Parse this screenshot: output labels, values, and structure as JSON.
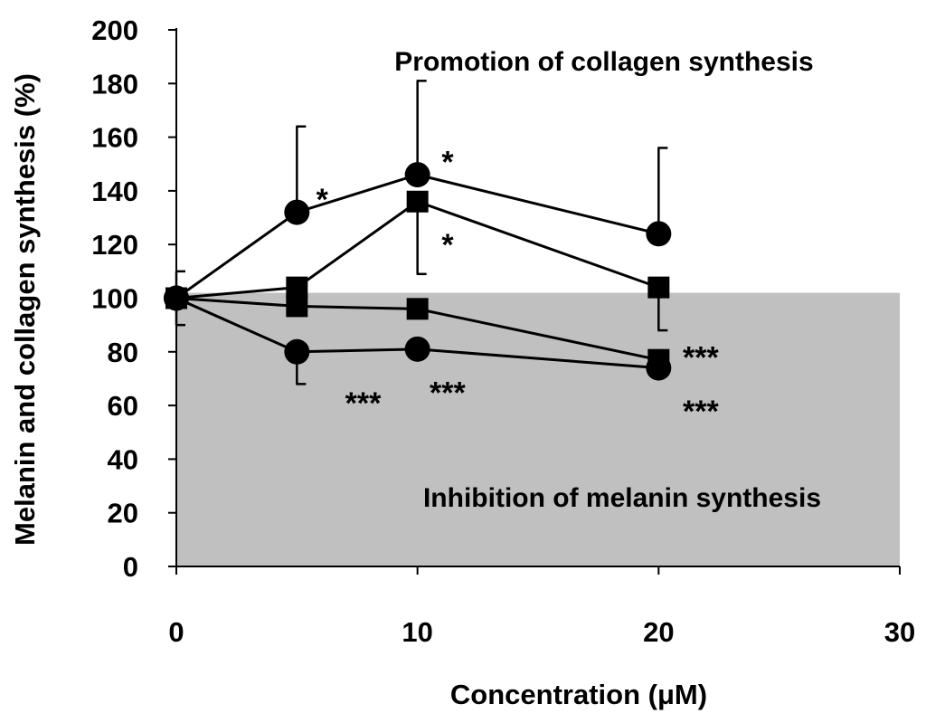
{
  "chart_data": {
    "type": "line",
    "xlabel": "Concentration (μM)",
    "ylabel": "Melanin and collagen synthesis (%)",
    "xlim": [
      0,
      30
    ],
    "ylim": [
      0,
      200
    ],
    "xticks": [
      "0",
      "10",
      "20",
      "30"
    ],
    "yticks": [
      "0",
      "20",
      "40",
      "60",
      "80",
      "100",
      "120",
      "140",
      "160",
      "180",
      "200"
    ],
    "grid": false,
    "shaded_region": {
      "x": [
        0,
        30
      ],
      "y": [
        0,
        102
      ],
      "color": "#c0c0c0"
    },
    "region_labels": {
      "upper": "Promotion of collagen   synthesis",
      "lower": "Inhibition of melanin synthesis"
    },
    "series": [
      {
        "marker": "circle",
        "x": [
          0,
          5,
          10,
          20
        ],
        "y": [
          100,
          132,
          146,
          124
        ],
        "error_up": [
          10,
          32,
          35,
          32
        ]
      },
      {
        "marker": "square",
        "x": [
          0,
          5,
          10,
          20
        ],
        "y": [
          100,
          104,
          136,
          104
        ],
        "error_down": [
          0,
          0,
          27,
          16
        ]
      },
      {
        "marker": "square",
        "x": [
          0,
          5,
          10,
          20
        ],
        "y": [
          100,
          97,
          96,
          77
        ]
      },
      {
        "marker": "circle",
        "x": [
          0,
          5,
          10,
          20
        ],
        "y": [
          100,
          80,
          81,
          74
        ],
        "error_down": [
          10,
          12,
          0,
          0
        ]
      }
    ],
    "annotations": [
      {
        "text": "*",
        "x": 5.8,
        "y": 137
      },
      {
        "text": "*",
        "x": 11.0,
        "y": 151
      },
      {
        "text": "*",
        "x": 11.0,
        "y": 120
      },
      {
        "text": "***",
        "x": 7.0,
        "y": 61
      },
      {
        "text": "***",
        "x": 10.5,
        "y": 65
      },
      {
        "text": "***",
        "x": 21.0,
        "y": 78
      },
      {
        "text": "***",
        "x": 21.0,
        "y": 58
      }
    ]
  }
}
